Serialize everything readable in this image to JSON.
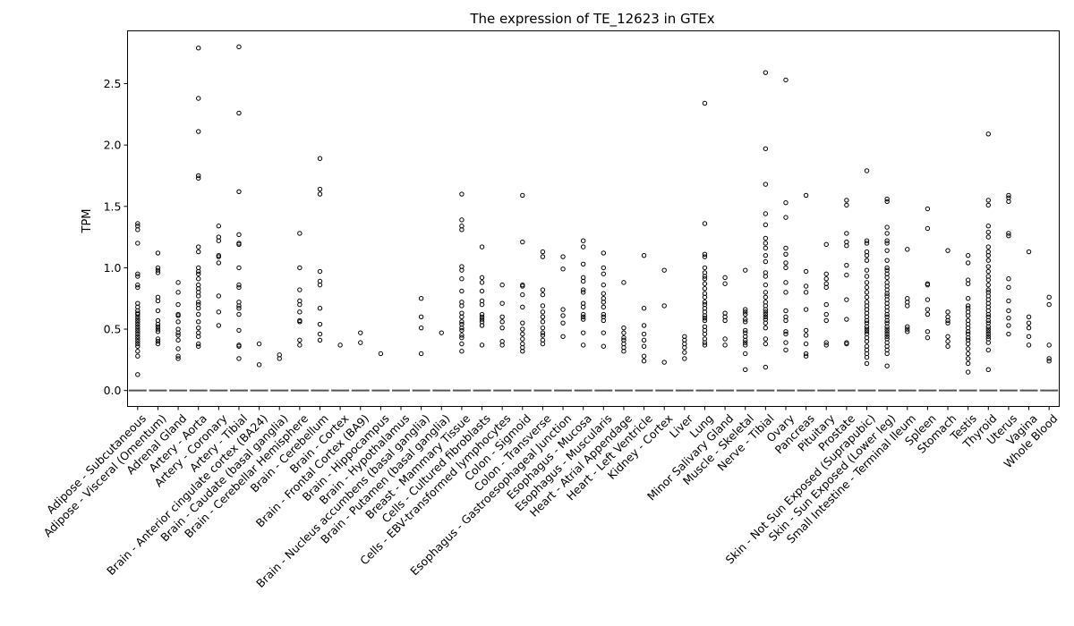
{
  "chart_data": {
    "type": "box",
    "title": "The expression of TE_12623 in GTEx",
    "xlabel": "",
    "ylabel": "TPM",
    "ylim": [
      -0.13,
      2.93
    ],
    "yticks": [
      0.0,
      0.5,
      1.0,
      1.5,
      2.0,
      2.5
    ],
    "ytick_labels": [
      "0.0",
      "0.5",
      "1.0",
      "1.5",
      "2.0",
      "2.5"
    ],
    "grid": false,
    "legend": "none",
    "categories": [
      "Adipose - Subcutaneous",
      "Adipose - Visceral (Omentum)",
      "Adrenal Gland",
      "Artery - Aorta",
      "Artery - Coronary",
      "Artery - Tibial",
      "Brain - Anterior cingulate cortex (BA24)",
      "Brain - Caudate (basal ganglia)",
      "Brain - Cerebellar Hemisphere",
      "Brain - Cerebellum",
      "Brain - Cortex",
      "Brain - Frontal Cortex (BA9)",
      "Brain - Hippocampus",
      "Brain - Hypothalamus",
      "Brain - Nucleus accumbens (basal ganglia)",
      "Brain - Putamen (basal ganglia)",
      "Breast - Mammary Tissue",
      "Cells - Cultured fibroblasts",
      "Cells - EBV-transformed lymphocytes",
      "Colon - Sigmoid",
      "Colon - Transverse",
      "Esophagus - Gastroesophageal Junction",
      "Esophagus - Mucosa",
      "Esophagus - Muscularis",
      "Heart - Atrial Appendage",
      "Heart - Left Ventricle",
      "Kidney - Cortex",
      "Liver",
      "Lung",
      "Minor Salivary Gland",
      "Muscle - Skeletal",
      "Nerve - Tibial",
      "Ovary",
      "Pancreas",
      "Pituitary",
      "Prostate",
      "Skin - Not Sun Exposed (Suprapubic)",
      "Skin - Sun Exposed (Lower leg)",
      "Small Intestine - Terminal Ileum",
      "Spleen",
      "Stomach",
      "Testis",
      "Thyroid",
      "Uterus",
      "Vagina",
      "Whole Blood"
    ],
    "median": 0.0,
    "outliers": [
      [
        1.36,
        1.34,
        1.31,
        1.2,
        0.95,
        0.93,
        0.86,
        0.84,
        0.71,
        0.68,
        0.65,
        0.63,
        0.62,
        0.6,
        0.58,
        0.56,
        0.54,
        0.52,
        0.5,
        0.48,
        0.46,
        0.44,
        0.42,
        0.4,
        0.38,
        0.36,
        0.32,
        0.28,
        0.13
      ],
      [
        1.12,
        1.0,
        0.98,
        0.96,
        0.76,
        0.73,
        0.65,
        0.57,
        0.54,
        0.52,
        0.5,
        0.48,
        0.42,
        0.4,
        0.38
      ],
      [
        0.88,
        0.8,
        0.7,
        0.62,
        0.61,
        0.56,
        0.5,
        0.47,
        0.45,
        0.41,
        0.34,
        0.28,
        0.26
      ],
      [
        2.79,
        2.38,
        2.11,
        1.75,
        1.73,
        1.17,
        1.13,
        1.0,
        0.97,
        0.95,
        0.91,
        0.86,
        0.83,
        0.8,
        0.77,
        0.72,
        0.7,
        0.67,
        0.62,
        0.56,
        0.51,
        0.47,
        0.44,
        0.38,
        0.36
      ],
      [
        1.34,
        1.25,
        1.22,
        1.1,
        1.09,
        1.04,
        0.77,
        0.64,
        0.53
      ],
      [
        2.8,
        2.26,
        1.62,
        1.27,
        1.2,
        1.19,
        1.0,
        0.86,
        0.84,
        0.72,
        0.69,
        0.67,
        0.62,
        0.49,
        0.37,
        0.36,
        0.26
      ],
      [
        0.38,
        0.21
      ],
      [
        0.29,
        0.26
      ],
      [
        1.28,
        1.0,
        0.82,
        0.73,
        0.7,
        0.64,
        0.57,
        0.56,
        0.41,
        0.37
      ],
      [
        1.89,
        1.64,
        1.6,
        0.97,
        0.89,
        0.86,
        0.67,
        0.54,
        0.46,
        0.41
      ],
      [
        0.37
      ],
      [
        0.47,
        0.39
      ],
      [
        0.3
      ],
      [],
      [
        0.75,
        0.6,
        0.51,
        0.3
      ],
      [
        0.47
      ],
      [
        1.6,
        1.39,
        1.34,
        1.31,
        1.01,
        0.98,
        0.91,
        0.81,
        0.72,
        0.69,
        0.63,
        0.6,
        0.56,
        0.54,
        0.51,
        0.49,
        0.45,
        0.43,
        0.38,
        0.32
      ],
      [
        1.17,
        0.92,
        0.88,
        0.81,
        0.73,
        0.7,
        0.62,
        0.6,
        0.58,
        0.56,
        0.53,
        0.37
      ],
      [
        0.86,
        0.71,
        0.6,
        0.56,
        0.51,
        0.4,
        0.37
      ],
      [
        1.59,
        1.21,
        0.86,
        0.85,
        0.78,
        0.68,
        0.55,
        0.5,
        0.46,
        0.42,
        0.38,
        0.35,
        0.32
      ],
      [
        1.13,
        1.09,
        0.82,
        0.78,
        0.69,
        0.64,
        0.6,
        0.56,
        0.51,
        0.47,
        0.45,
        0.41,
        0.38
      ],
      [
        1.09,
        0.99,
        0.66,
        0.61,
        0.55,
        0.44
      ],
      [
        1.22,
        1.17,
        1.03,
        0.92,
        0.89,
        0.82,
        0.8,
        0.71,
        0.68,
        0.62,
        0.6,
        0.58,
        0.47,
        0.37
      ],
      [
        1.12,
        1.0,
        0.95,
        0.86,
        0.79,
        0.75,
        0.72,
        0.68,
        0.62,
        0.6,
        0.57,
        0.47,
        0.36
      ],
      [
        0.88,
        0.51,
        0.47,
        0.43,
        0.41,
        0.38,
        0.35,
        0.32
      ],
      [
        1.1,
        0.67,
        0.53,
        0.46,
        0.41,
        0.36,
        0.28,
        0.24
      ],
      [
        0.98,
        0.69,
        0.23
      ],
      [
        0.44,
        0.41,
        0.38,
        0.35,
        0.31,
        0.26
      ],
      [
        2.34,
        1.36,
        1.11,
        1.09,
        1.0,
        0.96,
        0.93,
        0.91,
        0.87,
        0.83,
        0.79,
        0.76,
        0.72,
        0.7,
        0.67,
        0.64,
        0.61,
        0.59,
        0.57,
        0.52,
        0.49,
        0.46,
        0.42,
        0.39,
        0.37
      ],
      [
        0.92,
        0.87,
        0.63,
        0.6,
        0.57,
        0.42,
        0.37
      ],
      [
        0.98,
        0.66,
        0.64,
        0.62,
        0.58,
        0.56,
        0.49,
        0.47,
        0.44,
        0.41,
        0.39,
        0.37,
        0.3,
        0.17
      ],
      [
        2.59,
        1.97,
        1.68,
        1.44,
        1.35,
        1.24,
        1.2,
        1.16,
        1.1,
        1.05,
        0.96,
        0.93,
        0.86,
        0.8,
        0.76,
        0.72,
        0.69,
        0.66,
        0.64,
        0.62,
        0.6,
        0.58,
        0.55,
        0.51,
        0.42,
        0.38,
        0.19
      ],
      [
        2.53,
        1.53,
        1.41,
        1.16,
        1.11,
        1.04,
        1.0,
        0.88,
        0.8,
        0.65,
        0.6,
        0.57,
        0.48,
        0.46,
        0.39,
        0.33
      ],
      [
        1.59,
        0.97,
        0.85,
        0.8,
        0.66,
        0.49,
        0.45,
        0.38,
        0.3,
        0.28
      ],
      [
        1.19,
        0.95,
        0.91,
        0.87,
        0.84,
        0.7,
        0.62,
        0.57,
        0.39,
        0.37
      ],
      [
        1.55,
        1.51,
        1.28,
        1.21,
        1.18,
        1.02,
        0.94,
        0.74,
        0.58,
        0.39,
        0.38
      ],
      [
        1.79,
        1.22,
        1.2,
        1.13,
        1.1,
        1.06,
        0.98,
        0.93,
        0.88,
        0.84,
        0.8,
        0.76,
        0.72,
        0.69,
        0.66,
        0.63,
        0.6,
        0.57,
        0.55,
        0.52,
        0.5,
        0.48,
        0.46,
        0.43,
        0.4,
        0.36,
        0.33,
        0.3,
        0.27,
        0.22
      ],
      [
        1.56,
        1.54,
        1.33,
        1.28,
        1.22,
        1.2,
        1.14,
        1.06,
        1.0,
        0.98,
        0.95,
        0.92,
        0.88,
        0.85,
        0.82,
        0.79,
        0.77,
        0.74,
        0.71,
        0.68,
        0.65,
        0.62,
        0.6,
        0.57,
        0.55,
        0.52,
        0.5,
        0.48,
        0.46,
        0.44,
        0.42,
        0.39,
        0.36,
        0.33,
        0.3,
        0.2
      ],
      [
        1.15,
        0.75,
        0.72,
        0.69,
        0.52,
        0.5,
        0.48
      ],
      [
        1.48,
        1.32,
        0.87,
        0.86,
        0.74,
        0.66,
        0.62,
        0.48,
        0.43
      ],
      [
        1.14,
        0.64,
        0.6,
        0.57,
        0.55,
        0.44,
        0.4,
        0.36
      ],
      [
        1.1,
        1.04,
        0.9,
        0.87,
        0.75,
        0.69,
        0.67,
        0.64,
        0.61,
        0.57,
        0.54,
        0.51,
        0.48,
        0.46,
        0.43,
        0.41,
        0.38,
        0.34,
        0.3,
        0.26,
        0.22,
        0.15
      ],
      [
        2.09,
        1.55,
        1.51,
        1.34,
        1.29,
        1.25,
        1.17,
        1.13,
        1.1,
        1.06,
        1.01,
        0.97,
        0.93,
        0.9,
        0.86,
        0.82,
        0.8,
        0.77,
        0.74,
        0.71,
        0.68,
        0.65,
        0.62,
        0.6,
        0.57,
        0.55,
        0.52,
        0.5,
        0.48,
        0.46,
        0.44,
        0.42,
        0.39,
        0.33,
        0.17
      ],
      [
        1.59,
        1.57,
        1.54,
        1.28,
        1.26,
        0.91,
        0.84,
        0.73,
        0.65,
        0.59,
        0.53,
        0.46
      ],
      [
        1.13,
        0.6,
        0.55,
        0.51,
        0.44,
        0.37
      ],
      [
        0.76,
        0.7,
        0.37,
        0.26,
        0.24
      ]
    ]
  }
}
